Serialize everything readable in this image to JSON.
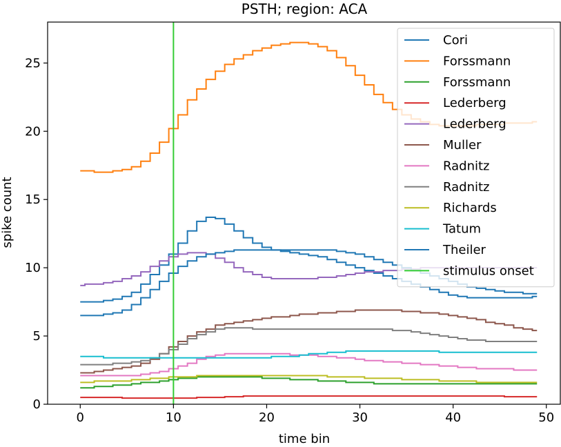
{
  "chart_data": {
    "type": "line",
    "drawstyle": "steps",
    "title": "PSTH; region: ACA",
    "xlabel": "time bin",
    "ylabel": "spike count",
    "xlim": [
      -3.5,
      51.5
    ],
    "ylim": [
      0,
      28
    ],
    "xticks": [
      0,
      10,
      20,
      30,
      40,
      50
    ],
    "yticks": [
      0,
      5,
      10,
      15,
      20,
      25
    ],
    "grid": false,
    "legend_position": "top-right",
    "x": [
      0,
      1,
      2,
      3,
      4,
      5,
      6,
      7,
      8,
      9,
      10,
      11,
      12,
      13,
      14,
      15,
      16,
      17,
      18,
      19,
      20,
      21,
      22,
      23,
      24,
      25,
      26,
      27,
      28,
      29,
      30,
      31,
      32,
      33,
      34,
      35,
      36,
      37,
      38,
      39,
      40,
      41,
      42,
      43,
      44,
      45,
      46,
      47,
      48,
      49
    ],
    "series": [
      {
        "name": "Cori",
        "color": "#1f77b4",
        "values": [
          7.5,
          7.5,
          7.5,
          7.6,
          7.7,
          7.9,
          8.2,
          8.8,
          9.5,
          10.2,
          11.0,
          11.8,
          12.7,
          13.4,
          13.7,
          13.6,
          13.2,
          12.7,
          12.2,
          11.8,
          11.5,
          11.3,
          11.2,
          11.1,
          11.0,
          10.9,
          10.8,
          10.6,
          10.4,
          10.2,
          10.0,
          9.8,
          9.6,
          9.4,
          9.2,
          9.0,
          8.8,
          8.6,
          8.4,
          8.2,
          8.0,
          7.9,
          7.8,
          7.8,
          7.8,
          7.8,
          7.8,
          7.8,
          7.8,
          7.9
        ]
      },
      {
        "name": "Forssmann",
        "color": "#ff7f0e",
        "values": [
          17.1,
          17.1,
          17.0,
          17.0,
          17.1,
          17.2,
          17.4,
          17.8,
          18.4,
          19.2,
          20.2,
          21.2,
          22.3,
          23.1,
          23.8,
          24.4,
          24.9,
          25.3,
          25.6,
          25.9,
          26.1,
          26.3,
          26.4,
          26.5,
          26.5,
          26.4,
          26.2,
          25.9,
          25.4,
          24.8,
          24.1,
          23.4,
          22.7,
          22.1,
          21.6,
          21.2,
          20.9,
          20.7,
          20.5,
          20.4,
          20.4,
          20.4,
          20.4,
          20.5,
          20.5,
          20.5,
          20.6,
          20.6,
          20.6,
          20.7
        ]
      },
      {
        "name": "Forssmann",
        "color": "#2ca02c",
        "values": [
          1.2,
          1.2,
          1.3,
          1.3,
          1.4,
          1.4,
          1.5,
          1.6,
          1.6,
          1.7,
          1.8,
          1.9,
          1.9,
          2.0,
          2.0,
          2.0,
          2.0,
          2.0,
          2.0,
          2.0,
          1.9,
          1.9,
          1.9,
          1.8,
          1.8,
          1.8,
          1.7,
          1.7,
          1.7,
          1.6,
          1.6,
          1.6,
          1.5,
          1.5,
          1.5,
          1.5,
          1.5,
          1.5,
          1.5,
          1.5,
          1.5,
          1.5,
          1.5,
          1.5,
          1.5,
          1.5,
          1.5,
          1.5,
          1.5,
          1.5
        ]
      },
      {
        "name": "Lederberg",
        "color": "#d62728",
        "values": [
          0.5,
          0.5,
          0.5,
          0.5,
          0.5,
          0.45,
          0.45,
          0.45,
          0.45,
          0.45,
          0.45,
          0.45,
          0.45,
          0.5,
          0.5,
          0.5,
          0.55,
          0.55,
          0.6,
          0.6,
          0.6,
          0.6,
          0.6,
          0.6,
          0.6,
          0.6,
          0.6,
          0.6,
          0.6,
          0.6,
          0.6,
          0.6,
          0.6,
          0.6,
          0.6,
          0.6,
          0.6,
          0.6,
          0.6,
          0.6,
          0.6,
          0.6,
          0.6,
          0.6,
          0.6,
          0.6,
          0.55,
          0.55,
          0.55,
          0.55
        ]
      },
      {
        "name": "Lederberg",
        "color": "#9467bd",
        "values": [
          8.7,
          8.8,
          8.8,
          8.9,
          9.0,
          9.2,
          9.4,
          9.7,
          10.1,
          10.5,
          10.8,
          11.0,
          11.1,
          11.1,
          11.0,
          10.7,
          10.4,
          10.0,
          9.7,
          9.5,
          9.3,
          9.2,
          9.2,
          9.2,
          9.2,
          9.2,
          9.3,
          9.3,
          9.4,
          9.5,
          9.6,
          9.7,
          9.7,
          9.8,
          9.8,
          9.9,
          9.9,
          10.0,
          10.0,
          10.0,
          10.0,
          10.0,
          10.0,
          10.0,
          10.0,
          10.0,
          10.0,
          10.0,
          10.0,
          10.0
        ]
      },
      {
        "name": "Muller",
        "color": "#8c564b",
        "values": [
          2.3,
          2.3,
          2.4,
          2.5,
          2.6,
          2.7,
          2.8,
          3.0,
          3.3,
          3.7,
          4.2,
          4.6,
          5.0,
          5.3,
          5.5,
          5.8,
          5.9,
          6.0,
          6.1,
          6.2,
          6.3,
          6.4,
          6.4,
          6.5,
          6.6,
          6.6,
          6.7,
          6.7,
          6.8,
          6.8,
          6.9,
          6.9,
          6.9,
          6.9,
          6.9,
          6.8,
          6.8,
          6.7,
          6.7,
          6.6,
          6.5,
          6.4,
          6.3,
          6.2,
          6.0,
          5.9,
          5.8,
          5.6,
          5.5,
          5.4
        ]
      },
      {
        "name": "Radnitz",
        "color": "#e377c2",
        "values": [
          2.1,
          2.1,
          2.1,
          2.1,
          2.1,
          2.1,
          2.1,
          2.2,
          2.3,
          2.4,
          2.6,
          2.8,
          3.0,
          3.3,
          3.5,
          3.6,
          3.7,
          3.7,
          3.7,
          3.7,
          3.7,
          3.7,
          3.7,
          3.6,
          3.6,
          3.6,
          3.5,
          3.5,
          3.4,
          3.4,
          3.3,
          3.2,
          3.2,
          3.1,
          3.1,
          3.0,
          3.0,
          2.9,
          2.9,
          2.8,
          2.8,
          2.7,
          2.7,
          2.6,
          2.6,
          2.6,
          2.6,
          2.5,
          2.5,
          2.5
        ]
      },
      {
        "name": "Radnitz",
        "color": "#7f7f7f",
        "values": [
          2.9,
          2.9,
          2.9,
          2.9,
          3.0,
          3.0,
          3.1,
          3.2,
          3.4,
          3.7,
          4.0,
          4.4,
          4.8,
          5.1,
          5.3,
          5.5,
          5.6,
          5.6,
          5.6,
          5.5,
          5.5,
          5.5,
          5.5,
          5.5,
          5.5,
          5.5,
          5.5,
          5.5,
          5.5,
          5.5,
          5.5,
          5.5,
          5.5,
          5.5,
          5.4,
          5.4,
          5.3,
          5.2,
          5.1,
          5.0,
          4.9,
          4.8,
          4.7,
          4.7,
          4.6,
          4.6,
          4.6,
          4.6,
          4.6,
          4.6
        ]
      },
      {
        "name": "Richards",
        "color": "#bcbd22",
        "values": [
          1.6,
          1.6,
          1.7,
          1.7,
          1.7,
          1.7,
          1.8,
          1.8,
          1.9,
          1.9,
          2.0,
          2.0,
          2.0,
          2.1,
          2.1,
          2.1,
          2.1,
          2.1,
          2.1,
          2.1,
          2.1,
          2.1,
          2.1,
          2.1,
          2.1,
          2.1,
          2.1,
          2.0,
          2.0,
          2.0,
          2.0,
          1.9,
          1.9,
          1.9,
          1.9,
          1.8,
          1.8,
          1.8,
          1.8,
          1.7,
          1.7,
          1.7,
          1.7,
          1.6,
          1.6,
          1.6,
          1.6,
          1.6,
          1.6,
          1.6
        ]
      },
      {
        "name": "Tatum",
        "color": "#17becf",
        "values": [
          3.5,
          3.5,
          3.5,
          3.4,
          3.4,
          3.4,
          3.4,
          3.4,
          3.4,
          3.4,
          3.4,
          3.4,
          3.4,
          3.4,
          3.4,
          3.4,
          3.4,
          3.4,
          3.4,
          3.4,
          3.4,
          3.5,
          3.5,
          3.5,
          3.6,
          3.7,
          3.7,
          3.8,
          3.8,
          3.9,
          3.9,
          3.9,
          3.9,
          3.9,
          3.9,
          3.9,
          3.9,
          3.9,
          3.9,
          3.8,
          3.8,
          3.8,
          3.8,
          3.8,
          3.8,
          3.8,
          3.8,
          3.8,
          3.8,
          3.8
        ]
      },
      {
        "name": "Theiler",
        "color": "#1f77b4",
        "values": [
          6.5,
          6.5,
          6.5,
          6.6,
          6.7,
          6.9,
          7.3,
          7.8,
          8.4,
          9.0,
          9.6,
          10.1,
          10.5,
          10.8,
          11.0,
          11.1,
          11.2,
          11.3,
          11.3,
          11.3,
          11.3,
          11.3,
          11.3,
          11.3,
          11.3,
          11.3,
          11.3,
          11.3,
          11.2,
          11.1,
          11.0,
          10.8,
          10.6,
          10.4,
          10.2,
          10.0,
          9.8,
          9.6,
          9.4,
          9.2,
          9.0,
          8.8,
          8.6,
          8.5,
          8.4,
          8.3,
          8.2,
          8.2,
          8.1,
          8.1
        ]
      }
    ],
    "stimulus_onset": {
      "name": "stimulus onset",
      "x": 10,
      "color": "#33cc33"
    }
  }
}
